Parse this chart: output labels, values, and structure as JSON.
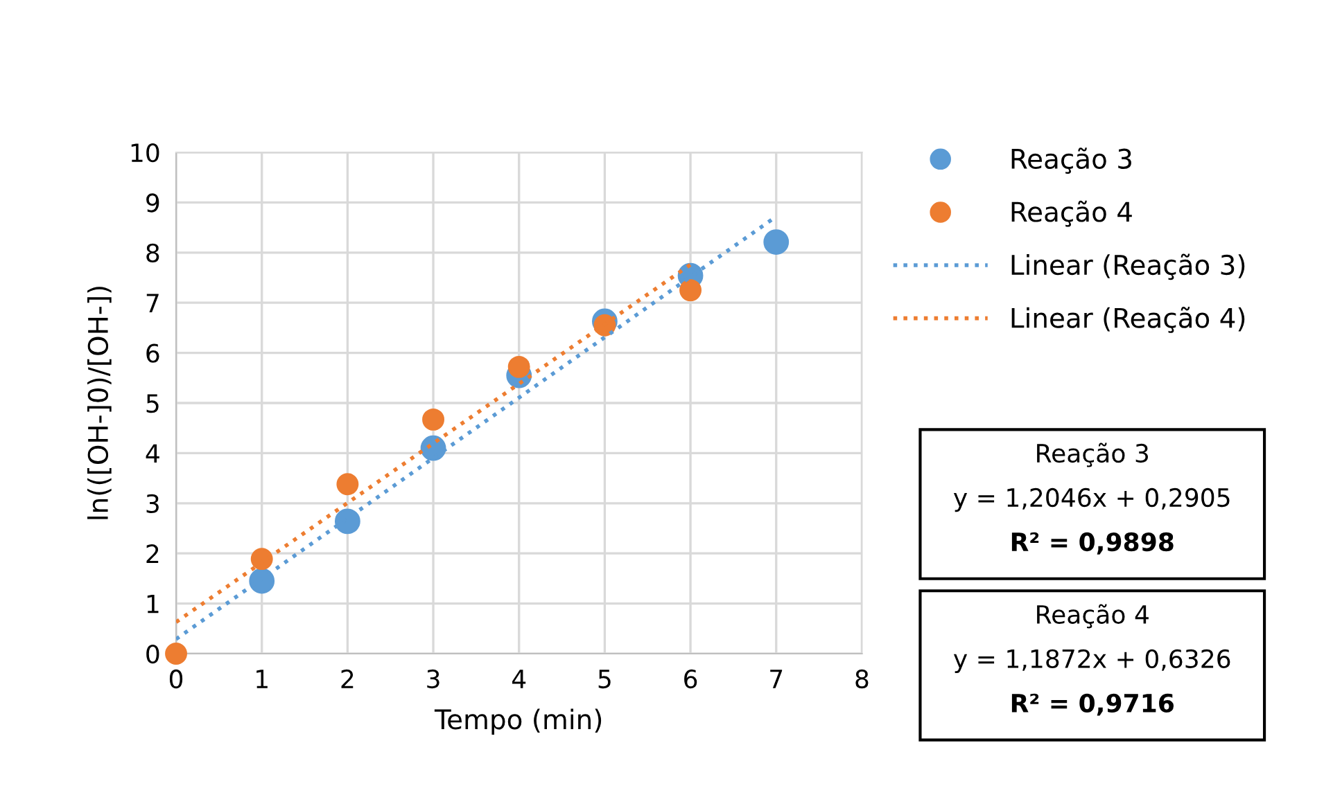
{
  "chart_data": {
    "type": "scatter",
    "xlabel": "Tempo (min)",
    "ylabel": "ln(([OH-]0)/[OH-])",
    "xlim": [
      0,
      8
    ],
    "xticks": [
      0,
      1,
      2,
      3,
      4,
      5,
      6,
      7,
      8
    ],
    "ylim": [
      0,
      10
    ],
    "yticks": [
      0,
      1,
      2,
      3,
      4,
      5,
      6,
      7,
      8,
      9,
      10
    ],
    "grid": true,
    "legend": "right",
    "series": [
      {
        "name": "Reação 3",
        "marker": "circle",
        "color": "#5b9bd5",
        "x": [
          1,
          2,
          3,
          4,
          5,
          6,
          7
        ],
        "values": [
          1.45,
          2.64,
          4.1,
          5.55,
          6.63,
          7.54,
          8.21
        ]
      },
      {
        "name": "Reação 4",
        "marker": "circle",
        "color": "#ed7d31",
        "x": [
          0,
          1,
          2,
          3,
          4,
          5,
          6
        ],
        "values": [
          0,
          1.89,
          3.38,
          4.67,
          5.72,
          6.55,
          7.25
        ]
      },
      {
        "name": "Linear (Reação 3)",
        "type": "line",
        "line_style": "dotted",
        "color": "#5b9bd5",
        "x": [
          0,
          7
        ],
        "values": [
          0.29,
          8.72
        ]
      },
      {
        "name": "Linear (Reação 4)",
        "type": "line",
        "line_style": "dotted",
        "color": "#ed7d31",
        "x": [
          0,
          6
        ],
        "values": [
          0.63,
          7.76
        ]
      }
    ],
    "annotations": [
      "Reação 3",
      "y = 1,2046x + 0,2905",
      "R² = 0,9898",
      "Reação 4",
      "y = 1,1872x + 0,6326",
      "R² = 0,9716"
    ]
  }
}
